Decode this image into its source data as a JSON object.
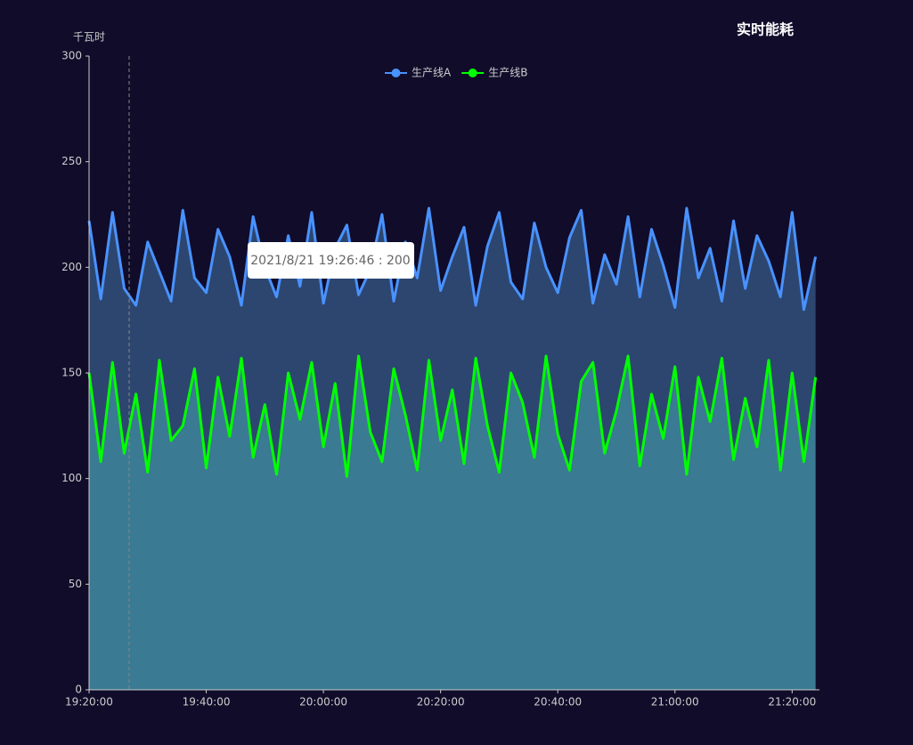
{
  "chart_data": {
    "type": "line",
    "title": "实时能耗",
    "y_label": "千瓦时",
    "x": [
      "19:20:00",
      "19:22:00",
      "19:24:00",
      "19:26:00",
      "19:28:00",
      "19:30:00",
      "19:32:00",
      "19:34:00",
      "19:36:00",
      "19:38:00",
      "19:40:00",
      "19:42:00",
      "19:44:00",
      "19:46:00",
      "19:48:00",
      "19:50:00",
      "19:52:00",
      "19:54:00",
      "19:56:00",
      "19:58:00",
      "20:00:00",
      "20:02:00",
      "20:04:00",
      "20:06:00",
      "20:08:00",
      "20:10:00",
      "20:12:00",
      "20:14:00",
      "20:16:00",
      "20:18:00",
      "20:20:00",
      "20:22:00",
      "20:24:00",
      "20:26:00",
      "20:28:00",
      "20:30:00",
      "20:32:00",
      "20:34:00",
      "20:36:00",
      "20:38:00",
      "20:40:00",
      "20:42:00",
      "20:44:00",
      "20:46:00",
      "20:48:00",
      "20:50:00",
      "20:52:00",
      "20:54:00",
      "20:56:00",
      "20:58:00",
      "21:00:00",
      "21:02:00",
      "21:04:00",
      "21:06:00",
      "21:08:00",
      "21:10:00",
      "21:12:00",
      "21:14:00",
      "21:16:00",
      "21:18:00",
      "21:20:00",
      "21:22:00",
      "21:24:00"
    ],
    "series": [
      {
        "name": "生产线A",
        "color": "#4992ff",
        "area_color": "#2c4670",
        "values": [
          222,
          185,
          226,
          190,
          182,
          212,
          198,
          184,
          227,
          195,
          188,
          218,
          205,
          182,
          224,
          200,
          186,
          215,
          191,
          226,
          183,
          209,
          220,
          187,
          199,
          225,
          184,
          212,
          195,
          228,
          189,
          205,
          219,
          182,
          210,
          226,
          193,
          185,
          221,
          200,
          188,
          214,
          227,
          183,
          206,
          192,
          224,
          186,
          218,
          201,
          181,
          228,
          195,
          209,
          184,
          222,
          190,
          215,
          203,
          186,
          226,
          180,
          205
        ]
      },
      {
        "name": "生产线B",
        "color": "#00ff00",
        "area_color": "#3a7a92",
        "values": [
          150,
          108,
          155,
          112,
          140,
          103,
          156,
          118,
          125,
          152,
          105,
          148,
          120,
          157,
          110,
          135,
          102,
          150,
          128,
          155,
          115,
          145,
          101,
          158,
          122,
          108,
          152,
          130,
          104,
          156,
          118,
          142,
          107,
          157,
          125,
          103,
          150,
          136,
          110,
          158,
          121,
          104,
          146,
          155,
          112,
          132,
          158,
          106,
          140,
          119,
          153,
          102,
          148,
          127,
          157,
          109,
          138,
          115,
          156,
          104,
          150,
          108,
          148
        ]
      }
    ],
    "xlim": [
      "19:20:00",
      "21:24:40"
    ],
    "xticks": [
      "19:20:00",
      "19:40:00",
      "20:00:00",
      "20:20:00",
      "20:40:00",
      "21:00:00",
      "21:20:00"
    ],
    "ylim": [
      0,
      300
    ],
    "yticks": [
      0,
      50,
      100,
      150,
      200,
      250,
      300
    ],
    "tooltip": "2021/8/21 19:26:46 : 200"
  }
}
